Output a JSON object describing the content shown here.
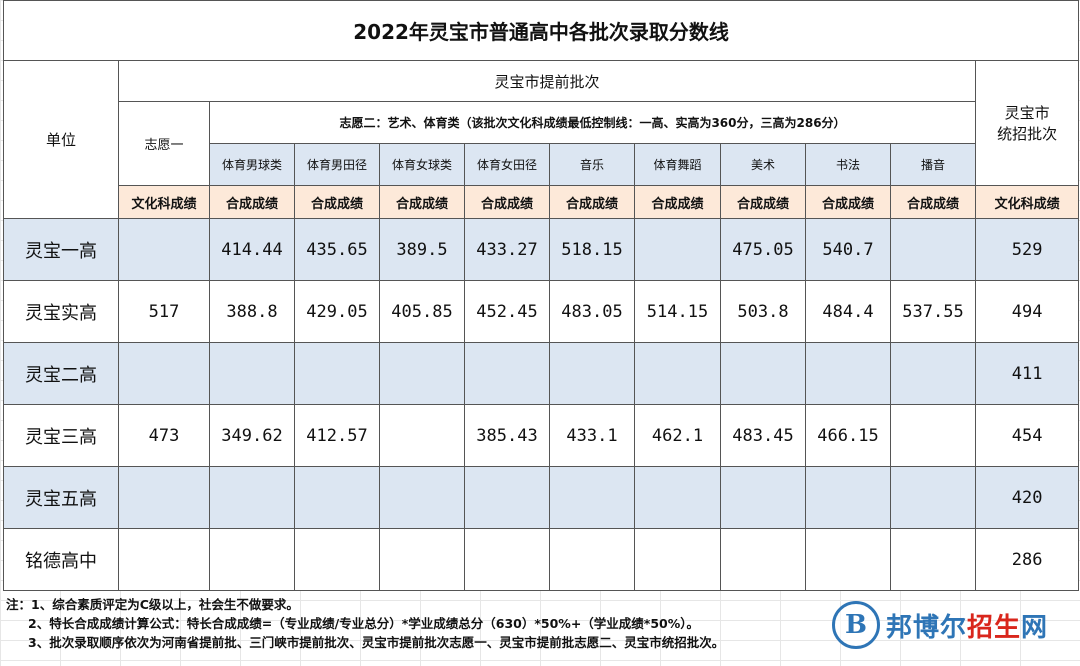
{
  "title": "2022年灵宝市普通高中各批次录取分数线",
  "headers": {
    "unit": "单位",
    "advance": "灵宝市提前批次",
    "choice1": "志愿一",
    "choice2": "志愿二：艺术、体育类（该批次文化科成绩最低控制线：一高、实高为360分，三高为286分）",
    "unified_line1": "灵宝市",
    "unified_line2": "统招批次",
    "categories": [
      "体育男球类",
      "体育男田径",
      "体育女球类",
      "体育女田径",
      "音乐",
      "体育舞蹈",
      "美术",
      "书法",
      "播音"
    ],
    "culture": "文化科成绩",
    "composite": "合成成绩",
    "culture_unified": "文化科成绩"
  },
  "rows": [
    {
      "unit": "灵宝一高",
      "choice1": "",
      "scores": [
        "414.44",
        "435.65",
        "389.5",
        "433.27",
        "518.15",
        "",
        "475.05",
        "540.7",
        ""
      ],
      "unified": "529"
    },
    {
      "unit": "灵宝实高",
      "choice1": "517",
      "scores": [
        "388.8",
        "429.05",
        "405.85",
        "452.45",
        "483.05",
        "514.15",
        "503.8",
        "484.4",
        "537.55"
      ],
      "unified": "494"
    },
    {
      "unit": "灵宝二高",
      "choice1": "",
      "scores": [
        "",
        "",
        "",
        "",
        "",
        "",
        "",
        "",
        ""
      ],
      "unified": "411"
    },
    {
      "unit": "灵宝三高",
      "choice1": "473",
      "scores": [
        "349.62",
        "412.57",
        "",
        "385.43",
        "433.1",
        "462.1",
        "483.45",
        "466.15",
        ""
      ],
      "unified": "454"
    },
    {
      "unit": "灵宝五高",
      "choice1": "",
      "scores": [
        "",
        "",
        "",
        "",
        "",
        "",
        "",
        "",
        ""
      ],
      "unified": "420"
    },
    {
      "unit": "铭德高中",
      "choice1": "",
      "scores": [
        "",
        "",
        "",
        "",
        "",
        "",
        "",
        "",
        ""
      ],
      "unified": "286"
    }
  ],
  "notes": [
    "注：1、综合素质评定为C级以上，社会生不做要求。",
    "2、特长合成成绩计算公式：特长合成成绩=（专业成绩/专业总分）*学业成绩总分（630）*50%+（学业成绩*50%）。",
    "3、批次录取顺序依次为河南省提前批、三门峡市提前批次、灵宝市提前批次志愿一、灵宝市提前批志愿二、灵宝市统招批次。"
  ],
  "watermark": {
    "logo": "B",
    "text_a": "邦博尔",
    "text_b": "招生",
    "text_c": "网"
  },
  "colors": {
    "row_highlight": "#dce6f2",
    "subheader_bg": "#fde9d9",
    "watermark": "#2e75b6"
  }
}
